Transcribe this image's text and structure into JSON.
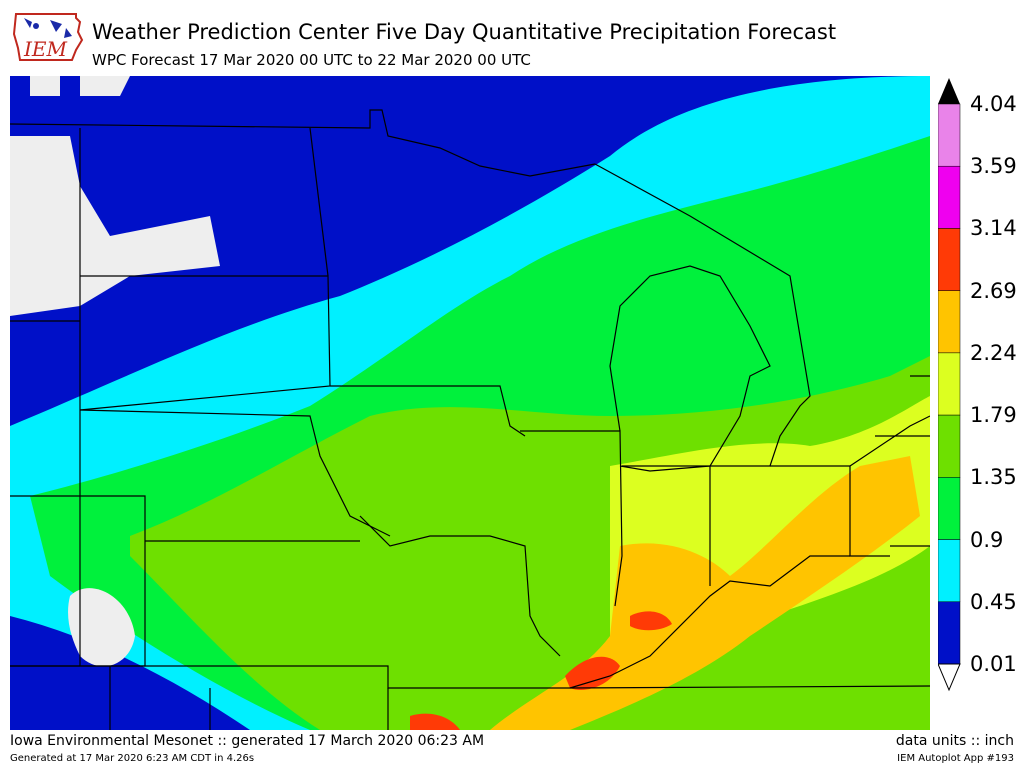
{
  "header": {
    "logo_text": "IEM",
    "title": "Weather Prediction Center Five Day Quantitative Precipitation Forecast",
    "subtitle": "WPC Forecast 17 Mar 2020 00 UTC to 22 Mar 2020 00 UTC"
  },
  "legend": {
    "labels": [
      "4.04",
      "3.59",
      "3.14",
      "2.69",
      "2.24",
      "1.79",
      "1.35",
      "0.9",
      "0.45",
      "0.01"
    ],
    "colors": [
      "#e983e9",
      "#ef00ef",
      "#ff3a06",
      "#ffc400",
      "#dcff20",
      "#6ee000",
      "#00f13c",
      "#00f0ff",
      "#0010c8"
    ],
    "over_color": "#000000",
    "under_color": "#ffffff"
  },
  "colors": {
    "no_precip": "#eeeeee",
    "border": "#000000"
  },
  "footer": {
    "left_main": "Iowa Environmental Mesonet :: generated 17 March 2020 06:23 AM",
    "left_small": "Generated at 17 Mar 2020 6:23 AM CDT in 4.26s",
    "right_main": "data units :: inch",
    "right_small": "IEM Autoplot App #193"
  }
}
